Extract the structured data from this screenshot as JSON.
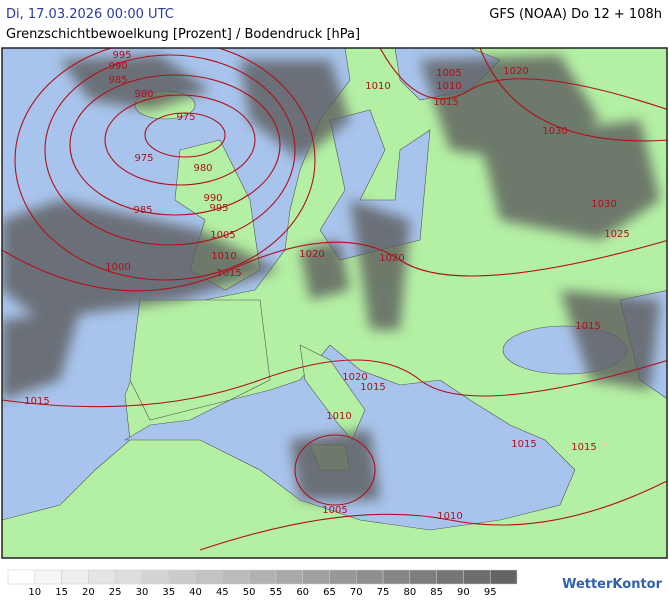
{
  "header": {
    "left_title": "Di, 17.03.2026 00:00 UTC",
    "right_title": "GFS (NOAA) Do 12 + 108h",
    "subtitle": "Grenzschichtbewoelkung [Prozent] / Bodendruck [hPa]"
  },
  "map": {
    "isobar_labels": [
      "995",
      "990",
      "985",
      "980",
      "975",
      "975",
      "980",
      "985",
      "990",
      "995",
      "1005",
      "1010",
      "1015",
      "1000",
      "1010",
      "1005",
      "1010",
      "1015",
      "1020",
      "1030",
      "1030",
      "1025",
      "1020",
      "1020",
      "1015",
      "1020",
      "1015",
      "1015",
      "1010",
      "1015",
      "1015",
      "1005",
      "1010"
    ]
  },
  "legend": {
    "values": [
      10,
      15,
      20,
      25,
      30,
      35,
      40,
      45,
      50,
      55,
      60,
      65,
      70,
      75,
      80,
      85,
      90,
      95
    ]
  },
  "logo": "WetterKontor"
}
